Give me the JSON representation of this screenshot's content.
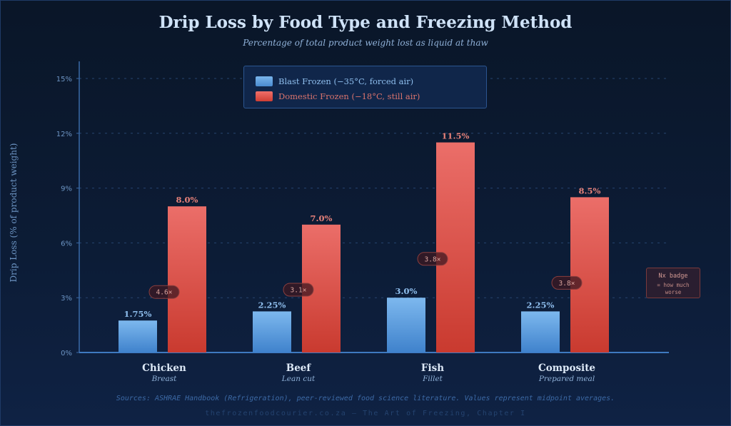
{
  "chart_data": {
    "type": "bar",
    "title": "Drip Loss by Food Type and Freezing Method",
    "subtitle": "Percentage of total product weight lost as liquid at thaw",
    "xlabel": "",
    "ylabel": "Drip Loss (% of product weight)",
    "ylim": [
      0,
      15
    ],
    "yticks": [
      0,
      3,
      6,
      9,
      12,
      15
    ],
    "ytick_labels": [
      "0%",
      "3%",
      "6%",
      "9%",
      "12%",
      "15%"
    ],
    "grid": true,
    "legend_position": "top-center",
    "categories": [
      "Chicken",
      "Beef",
      "Fish",
      "Composite"
    ],
    "category_subtitles": [
      "Breast",
      "Lean cut",
      "Fillet",
      "Prepared meal"
    ],
    "series": [
      {
        "name": "Blast Frozen (−35°C, forced air)",
        "color": "#5b9ee0",
        "values": [
          1.75,
          2.25,
          3.0,
          2.25
        ],
        "labels": [
          "1.75%",
          "2.25%",
          "3.0%",
          "2.25%"
        ]
      },
      {
        "name": "Domestic Frozen (−18°C, still air)",
        "color": "#e0504a",
        "values": [
          8.0,
          7.0,
          11.5,
          8.5
        ],
        "labels": [
          "8.0%",
          "7.0%",
          "11.5%",
          "8.5%"
        ]
      }
    ],
    "ratio_badges": [
      "4.6×",
      "3.1×",
      "3.8×",
      "3.8×"
    ],
    "annotation": {
      "title": "Nx badge",
      "body_line1": "= how much",
      "body_line2": "worse"
    }
  },
  "legend": {
    "blast_label": "Blast Frozen (−35°C, forced air)",
    "domestic_label": "Domestic Frozen (−18°C, still air)"
  },
  "colors": {
    "blast": "#5b9ee0",
    "domestic": "#e0504a",
    "blast_text": "#8fbfee",
    "domestic_text": "#e8827a"
  },
  "footer": {
    "sources": "Sources: ASHRAE Handbook (Refrigeration), peer-reviewed food science literature. Values represent midpoint averages.",
    "credit": "thefrozenfoodcourier.co.za — The Art of Freezing, Chapter I"
  }
}
